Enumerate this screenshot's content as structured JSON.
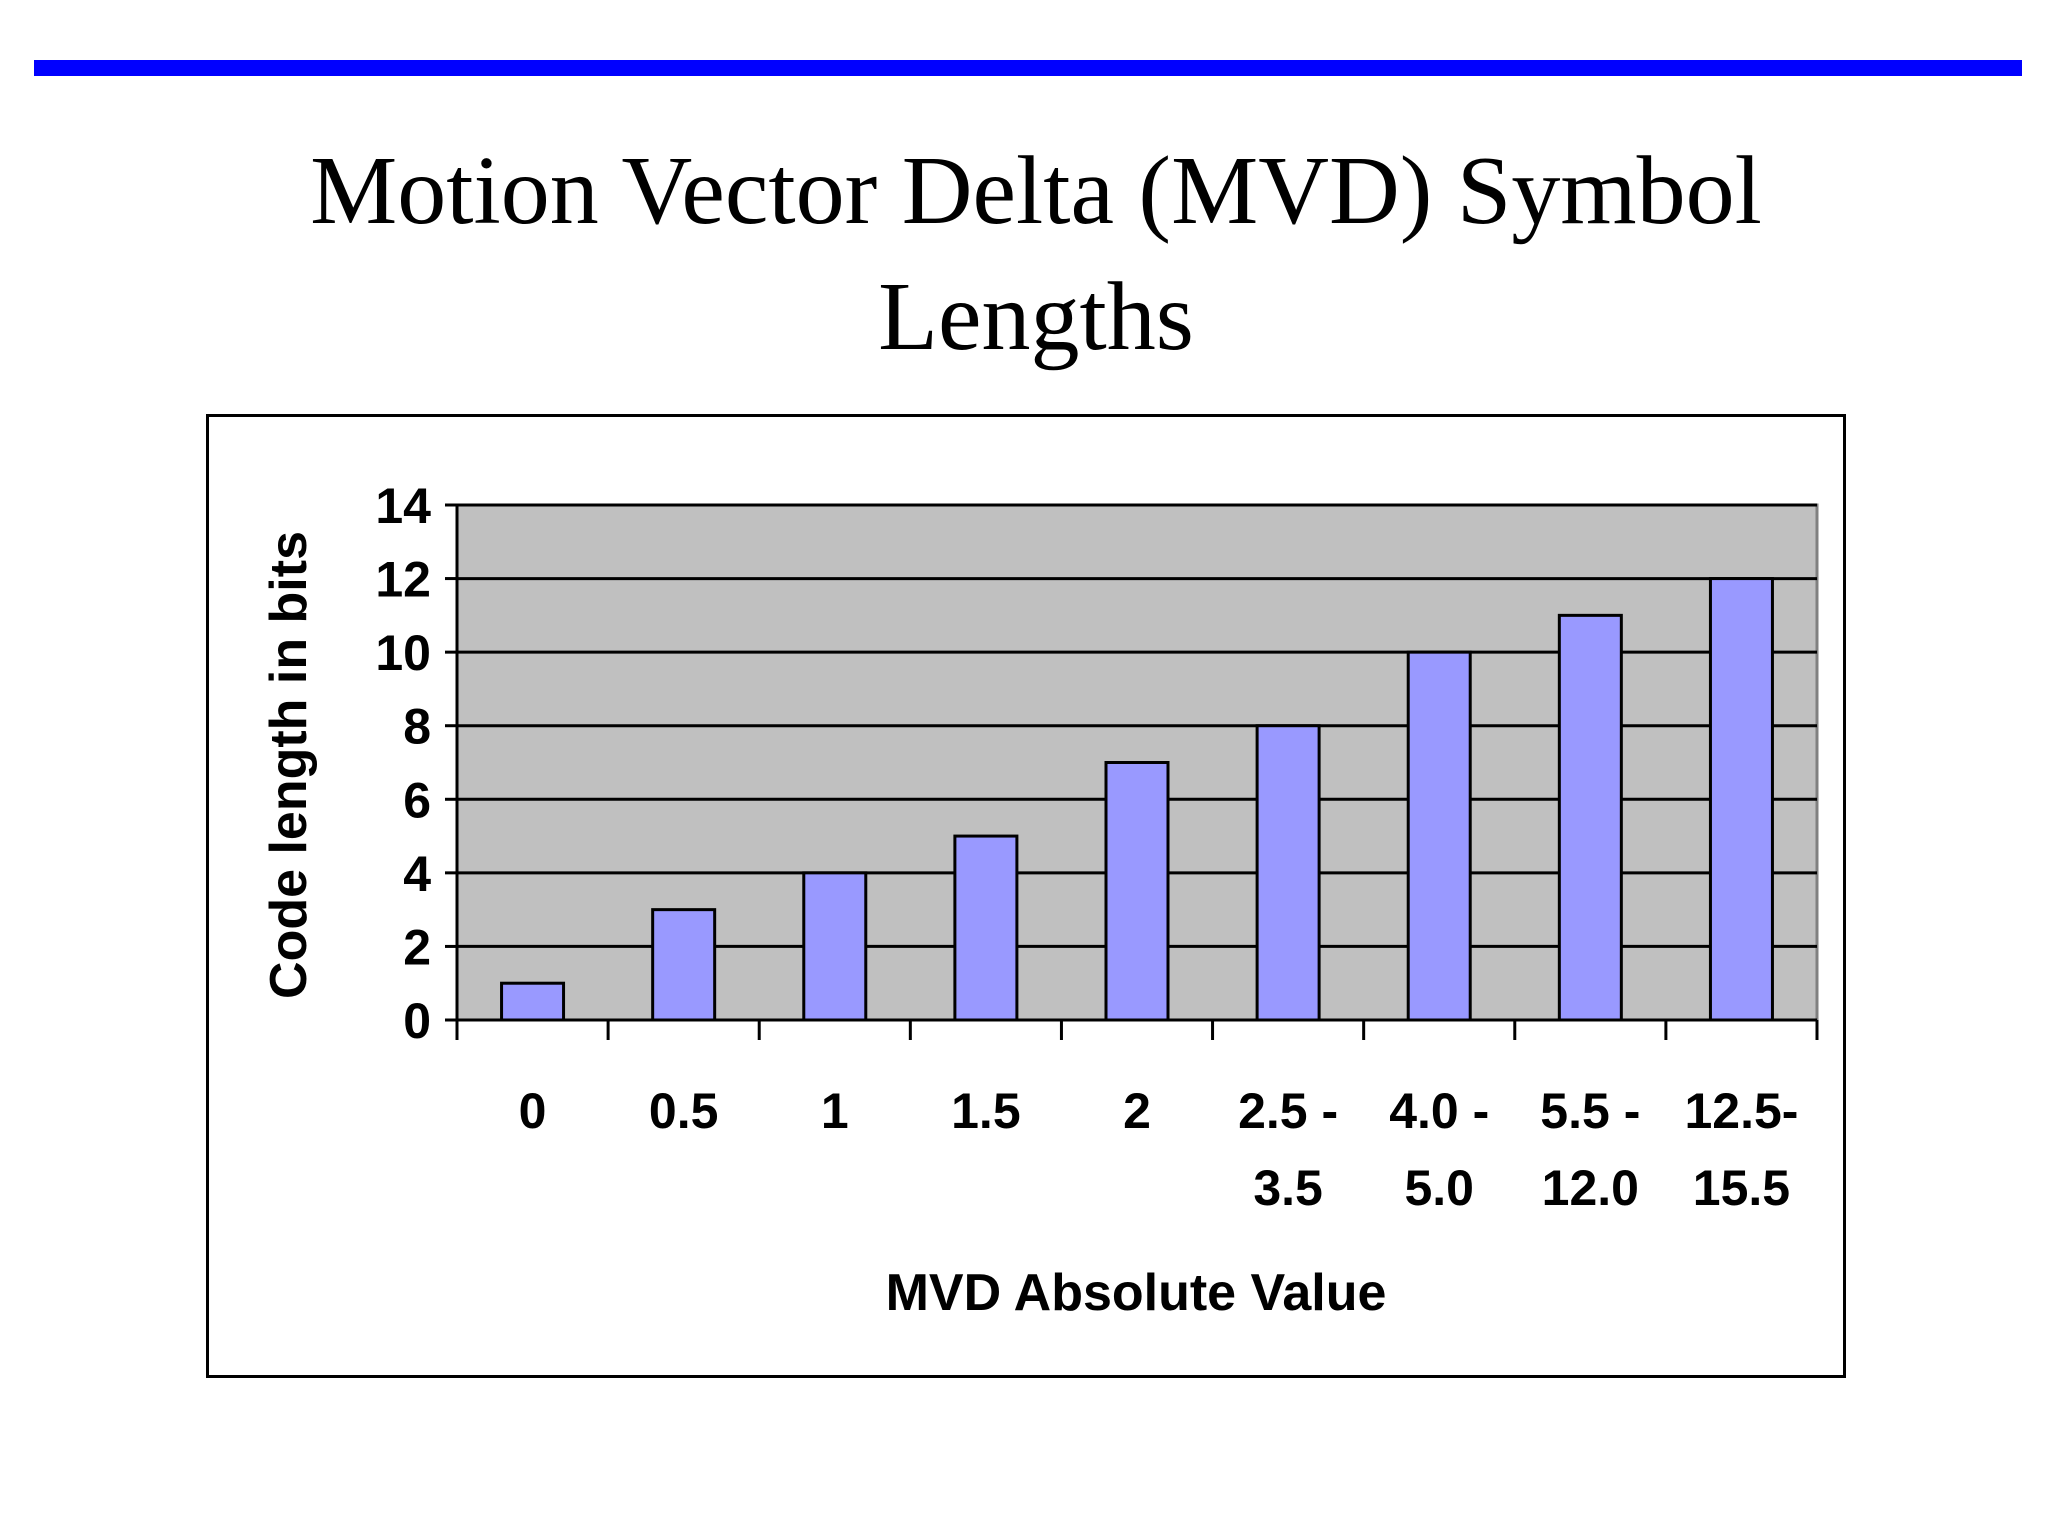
{
  "slide": {
    "title_line1": "Motion Vector Delta (MVD) Symbol",
    "title_line2": "Lengths"
  },
  "colors": {
    "rule": "#0000ff",
    "plot_background": "#c0c0c0",
    "bar_fill": "#9999ff",
    "bar_stroke": "#000000",
    "gridline": "#000000"
  },
  "chart_data": {
    "type": "bar",
    "categories": [
      [
        "0"
      ],
      [
        "0.5"
      ],
      [
        "1"
      ],
      [
        "1.5"
      ],
      [
        "2"
      ],
      [
        "2.5 -",
        "3.5"
      ],
      [
        "4.0 -",
        "5.0"
      ],
      [
        "5.5 -",
        "12.0"
      ],
      [
        "12.5-",
        "15.5"
      ]
    ],
    "values": [
      1,
      3,
      4,
      5,
      7,
      8,
      10,
      11,
      12
    ],
    "xlabel": "MVD Absolute Value",
    "ylabel": "Code length in bits",
    "ylim": [
      0,
      14
    ],
    "yticks": [
      "0",
      "2",
      "4",
      "6",
      "8",
      "10",
      "12",
      "14"
    ],
    "grid": true,
    "legend": "none"
  }
}
